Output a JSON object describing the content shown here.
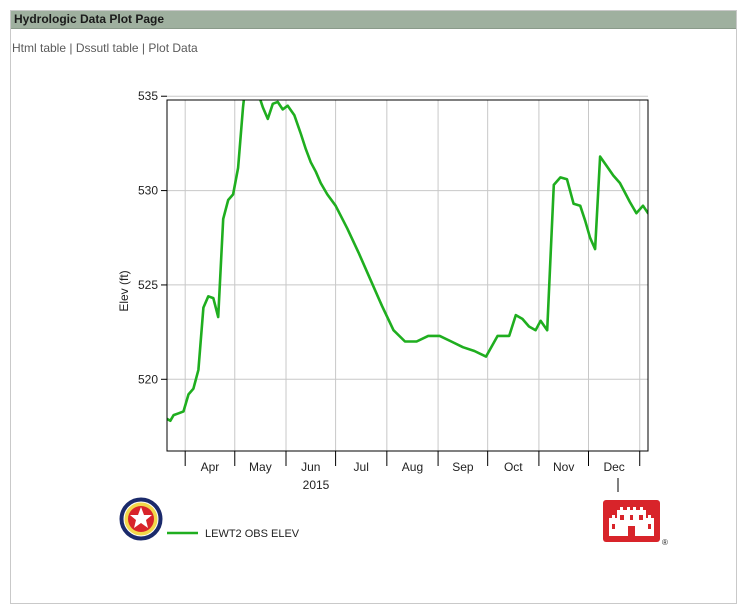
{
  "page": {
    "title": "Hydrologic Data Plot Page",
    "links": [
      "Html table",
      "Dssutl table",
      "Plot Data"
    ],
    "separator": "|"
  },
  "colors": {
    "header_bg": "#9fb09f",
    "series": "#1fae1f",
    "grid": "#c8c8c8",
    "logo_red": "#d8242a"
  },
  "icons": [
    "agency-seal-icon",
    "usace-castle-logo-icon"
  ],
  "chart_data": {
    "type": "line",
    "title": "",
    "xlabel": "2015",
    "ylabel": "Elev (ft)",
    "ylim": [
      516.2,
      534.8
    ],
    "yticks": [
      520,
      525,
      530,
      535
    ],
    "ytick_labels": [
      "520",
      "525",
      "530",
      "535"
    ],
    "x_months": [
      "Apr",
      "May",
      "Jun",
      "Jul",
      "Aug",
      "Sep",
      "Oct",
      "Nov",
      "Dec"
    ],
    "xlim": [
      "2015-03-21",
      "2016-01-06"
    ],
    "month_boundaries": [
      "2015-04-01",
      "2015-05-01",
      "2015-06-01",
      "2015-07-01",
      "2015-08-01",
      "2015-09-01",
      "2015-10-01",
      "2015-11-01",
      "2015-12-01",
      "2016-01-01"
    ],
    "grid": true,
    "legend_position": "bottom-left",
    "series": [
      {
        "name": "LEWT2 OBS ELEV",
        "x": [
          "2015-03-21",
          "2015-03-23",
          "2015-03-25",
          "2015-03-28",
          "2015-03-31",
          "2015-04-03",
          "2015-04-06",
          "2015-04-09",
          "2015-04-12",
          "2015-04-15",
          "2015-04-18",
          "2015-04-21",
          "2015-04-24",
          "2015-04-27",
          "2015-04-30",
          "2015-05-03",
          "2015-05-06",
          "2015-05-09",
          "2015-05-12",
          "2015-05-15",
          "2015-05-18",
          "2015-05-21",
          "2015-05-24",
          "2015-05-27",
          "2015-05-30",
          "2015-06-02",
          "2015-06-06",
          "2015-06-10",
          "2015-06-13",
          "2015-06-16",
          "2015-06-19",
          "2015-06-22",
          "2015-06-26",
          "2015-07-01",
          "2015-07-08",
          "2015-07-15",
          "2015-07-22",
          "2015-07-29",
          "2015-08-05",
          "2015-08-12",
          "2015-08-19",
          "2015-08-26",
          "2015-09-02",
          "2015-09-09",
          "2015-09-16",
          "2015-09-23",
          "2015-09-30",
          "2015-10-07",
          "2015-10-14",
          "2015-10-18",
          "2015-10-22",
          "2015-10-26",
          "2015-10-30",
          "2015-11-02",
          "2015-11-06",
          "2015-11-10",
          "2015-11-14",
          "2015-11-18",
          "2015-11-22",
          "2015-11-26",
          "2015-11-29",
          "2015-12-02",
          "2015-12-05",
          "2015-12-08",
          "2015-12-12",
          "2015-12-16",
          "2015-12-20",
          "2015-12-23",
          "2015-12-26",
          "2015-12-30",
          "2016-01-03",
          "2016-01-06"
        ],
        "y": [
          517.9,
          517.8,
          518.1,
          518.2,
          518.3,
          519.2,
          519.5,
          520.5,
          523.8,
          524.4,
          524.3,
          523.3,
          528.5,
          529.5,
          529.8,
          531.2,
          534.4,
          536.8,
          536.0,
          535.2,
          534.4,
          533.8,
          534.6,
          534.7,
          534.3,
          534.5,
          534.0,
          533.0,
          532.2,
          531.5,
          531.0,
          530.4,
          529.8,
          529.2,
          528.0,
          526.7,
          525.3,
          523.9,
          522.6,
          522.0,
          522.0,
          522.3,
          522.3,
          522.0,
          521.7,
          521.5,
          521.2,
          522.3,
          522.3,
          523.4,
          523.2,
          522.8,
          522.6,
          523.1,
          522.6,
          530.3,
          530.7,
          530.6,
          529.3,
          529.2,
          528.4,
          527.5,
          526.9,
          531.8,
          531.3,
          530.8,
          530.4,
          529.9,
          529.4,
          528.8,
          529.2,
          528.8
        ]
      }
    ]
  }
}
